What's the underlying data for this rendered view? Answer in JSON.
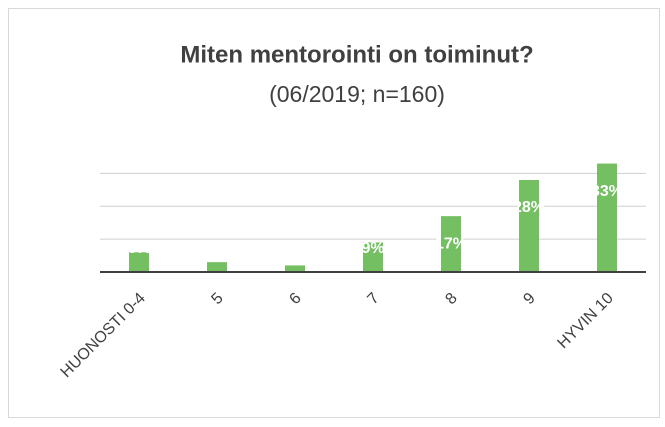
{
  "chart_data": {
    "type": "bar",
    "title": "Miten mentorointi on toiminut?",
    "subtitle": "(06/2019; n=160)",
    "categories": [
      "HUONOSTI 0-4",
      "5",
      "6",
      "7",
      "8",
      "9",
      "HYVIN 10"
    ],
    "values": [
      6,
      3,
      2,
      9,
      17,
      28,
      33
    ],
    "value_labels": [
      "6%",
      "3%",
      "2%",
      "9%",
      "17%",
      "28%",
      "33%"
    ],
    "color": "#74bf62",
    "ylim": [
      0,
      35
    ],
    "yticks": [
      0,
      10,
      20,
      30
    ],
    "grid": true
  }
}
